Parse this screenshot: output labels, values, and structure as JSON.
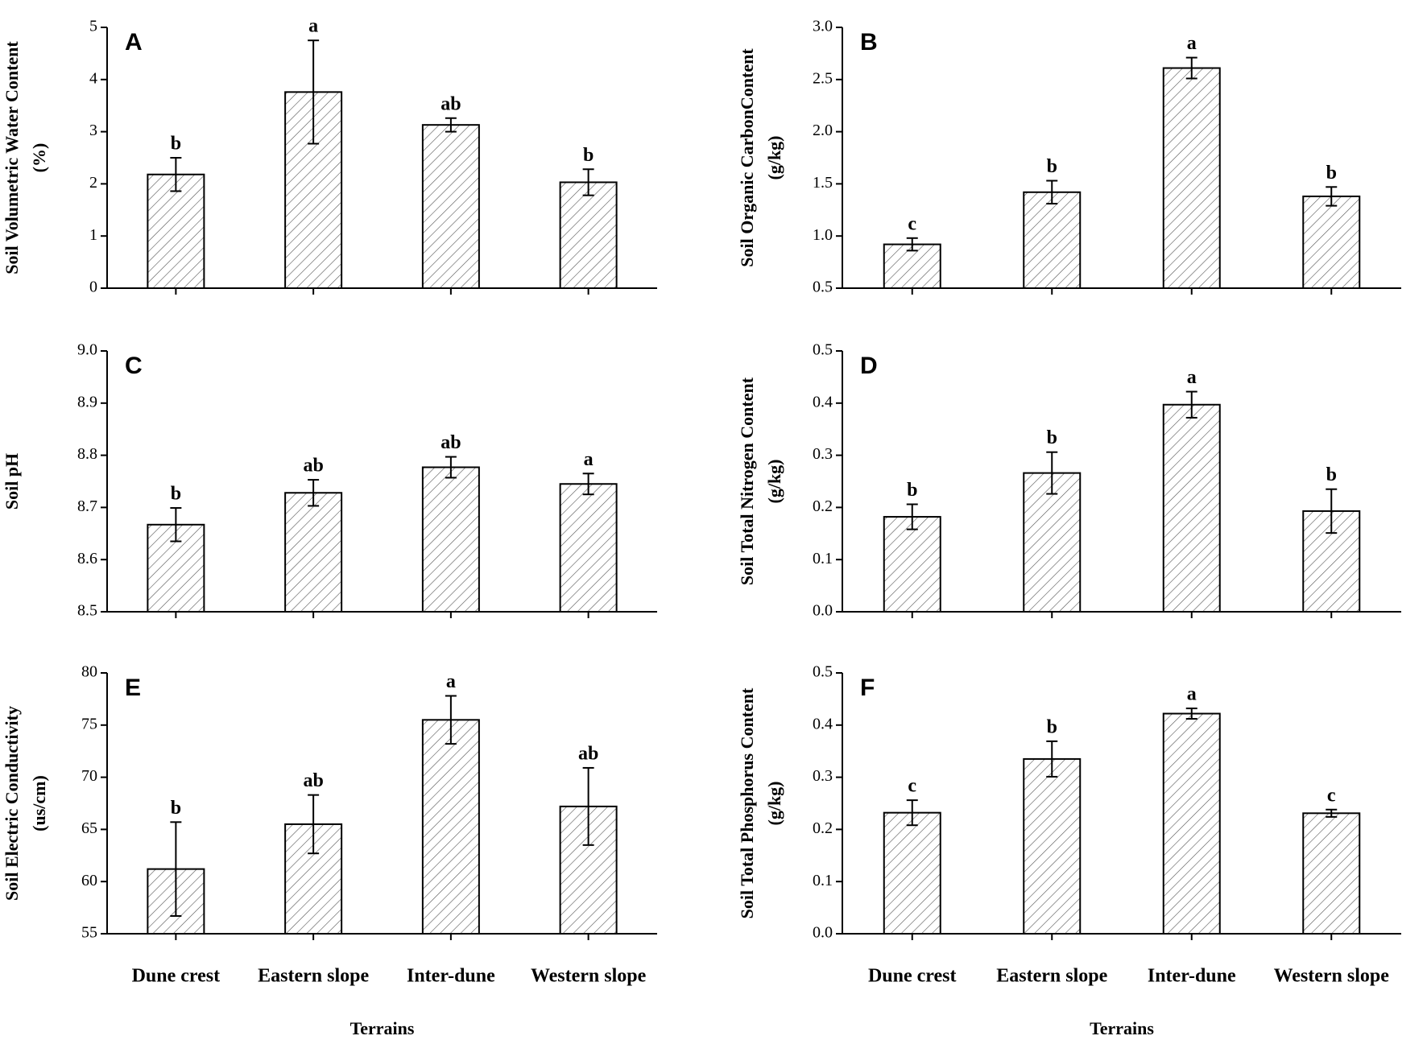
{
  "chart_data": [
    {
      "type": "bar",
      "panel": "A",
      "ylabel": [
        "Soil Volumetric Water Content",
        "(%)"
      ],
      "categories": [
        null,
        null,
        null,
        null
      ],
      "values": [
        2.18,
        3.76,
        3.13,
        2.03
      ],
      "errors": [
        0.32,
        0.99,
        0.13,
        0.25
      ],
      "annotations": [
        "b",
        "a",
        "ab",
        "b"
      ],
      "ylim": [
        0,
        5
      ],
      "yticks": [
        0,
        1,
        2,
        3,
        4,
        5
      ],
      "color": "#000000"
    },
    {
      "type": "bar",
      "panel": "B",
      "ylabel": [
        "Soil Organic CarbonContent",
        "(g/kg)"
      ],
      "categories": [
        null,
        null,
        null,
        null
      ],
      "values": [
        0.92,
        1.42,
        2.61,
        1.38
      ],
      "errors": [
        0.06,
        0.11,
        0.1,
        0.09
      ],
      "annotations": [
        "c",
        "b",
        "a",
        "b"
      ],
      "ylim": [
        0.5,
        3.0
      ],
      "yticks": [
        0.5,
        {
          "value": 1,
          "label": "1.0"
        },
        1.5,
        {
          "value": 2,
          "label": "2.0"
        },
        2.5,
        {
          "value": 3,
          "label": "3.0"
        }
      ],
      "color": "#000000"
    },
    {
      "type": "bar",
      "panel": "C",
      "ylabel": [
        "Soil pH"
      ],
      "categories": [
        null,
        null,
        null,
        null
      ],
      "values": [
        8.667,
        8.728,
        8.777,
        8.745
      ],
      "errors": [
        0.032,
        0.025,
        0.02,
        0.02
      ],
      "annotations": [
        "b",
        "ab",
        "ab",
        "a"
      ],
      "ylim": [
        8.5,
        9.0
      ],
      "yticks": [
        8.5,
        8.6,
        8.7,
        8.8,
        8.9,
        {
          "value": 9,
          "label": "9.0"
        }
      ],
      "color": "#000000"
    },
    {
      "type": "bar",
      "panel": "D",
      "ylabel": [
        "Soil Total Nitrogen Content",
        "(g/kg)"
      ],
      "categories": [
        null,
        null,
        null,
        null
      ],
      "values": [
        0.182,
        0.266,
        0.397,
        0.193
      ],
      "errors": [
        0.024,
        0.04,
        0.025,
        0.042
      ],
      "annotations": [
        "b",
        "b",
        "a",
        "b"
      ],
      "ylim": [
        0,
        0.5
      ],
      "yticks": [
        {
          "value": 0,
          "label": "0.0"
        },
        0.1,
        0.2,
        0.3,
        0.4,
        0.5
      ],
      "color": "#000000"
    },
    {
      "type": "bar",
      "panel": "E",
      "ylabel": [
        "Soil Electric Conductivity",
        "(us/cm)"
      ],
      "xlabel": "Terrains",
      "categories": [
        "Dune crest",
        "Eastern slope",
        "Inter-dune",
        "Western slope"
      ],
      "values": [
        61.2,
        65.5,
        75.5,
        67.2
      ],
      "errors": [
        4.5,
        2.8,
        2.3,
        3.7
      ],
      "annotations": [
        "b",
        "ab",
        "a",
        "ab"
      ],
      "ylim": [
        55,
        80
      ],
      "yticks": [
        55,
        60,
        65,
        70,
        75,
        80
      ],
      "color": "#000000"
    },
    {
      "type": "bar",
      "panel": "F",
      "ylabel": [
        "Soil Total Phosphorus Content",
        "(g/kg)"
      ],
      "xlabel": "Terrains",
      "categories": [
        "Dune crest",
        "Eastern slope",
        "Inter-dune",
        "Western slope"
      ],
      "values": [
        0.232,
        0.335,
        0.422,
        0.231
      ],
      "errors": [
        0.024,
        0.034,
        0.01,
        0.007
      ],
      "annotations": [
        "c",
        "b",
        "a",
        "c"
      ],
      "ylim": [
        0,
        0.5
      ],
      "yticks": [
        {
          "value": 0,
          "label": "0.0"
        },
        0.1,
        0.2,
        0.3,
        0.4,
        0.5
      ],
      "color": "#000000"
    }
  ]
}
